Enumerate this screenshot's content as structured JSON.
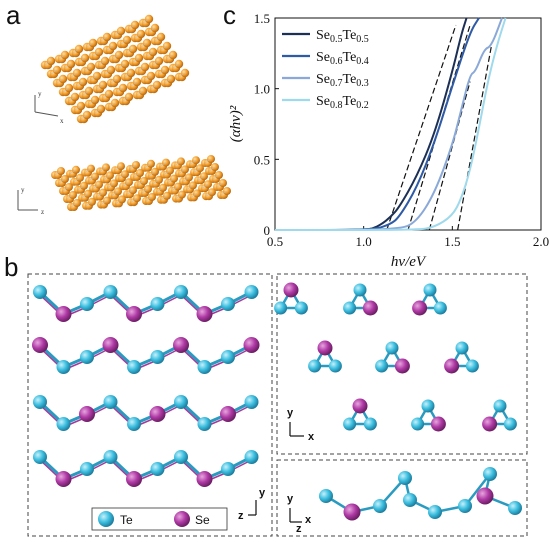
{
  "panels": {
    "a": {
      "letter": "a",
      "top_axes": {
        "y": "y",
        "x": "x"
      },
      "bottom_axes": {
        "y": "y",
        "z": "z"
      }
    },
    "b": {
      "letter": "b",
      "legend": {
        "te": "Te",
        "se": "Se"
      },
      "left_axes": {
        "y": "y",
        "z": "z"
      },
      "right_top_axes": {
        "y": "y",
        "x": "x"
      },
      "right_bottom_axes": {
        "y": "y",
        "x": "x",
        "z": "z"
      }
    },
    "c": {
      "letter": "c"
    }
  },
  "colors": {
    "atom_orange": "#f5a030",
    "te": "#3cbfe0",
    "se": "#b03aa6",
    "series": [
      "#1c2f55",
      "#2e5aa6",
      "#8aa9d8",
      "#9fd9ec"
    ]
  },
  "chart_data": {
    "type": "line",
    "xlabel": "hν/eV",
    "ylabel": "(αhν)²",
    "xlim": [
      0.5,
      2.0
    ],
    "ylim": [
      0,
      1.5
    ],
    "xticks": [
      "0.5",
      "1.0",
      "1.5",
      "2.0"
    ],
    "yticks": [
      "0",
      "0.5",
      "1.0",
      "1.5"
    ],
    "legend_position": "top-left",
    "series": [
      {
        "name": "Se0.5Te0.5",
        "label_base": "Se",
        "sub1": "0.5",
        "mid": "Te",
        "sub2": "0.5",
        "x": [
          0.5,
          1.0,
          1.05,
          1.1,
          1.15,
          1.2,
          1.3,
          1.4,
          1.5,
          1.55,
          1.58
        ],
        "y": [
          0,
          0,
          0.01,
          0.04,
          0.09,
          0.16,
          0.38,
          0.68,
          1.12,
          1.38,
          1.5
        ]
      },
      {
        "name": "Se0.6Te0.4",
        "label_base": "Se",
        "sub1": "0.6",
        "mid": "Te",
        "sub2": "0.4",
        "x": [
          0.5,
          1.05,
          1.15,
          1.2,
          1.3,
          1.4,
          1.5,
          1.6,
          1.65
        ],
        "y": [
          0,
          0,
          0.04,
          0.09,
          0.3,
          0.62,
          1.02,
          1.4,
          1.5
        ]
      },
      {
        "name": "Se0.7Te0.3",
        "label_base": "Se",
        "sub1": "0.7",
        "mid": "Te",
        "sub2": "0.3",
        "x": [
          0.5,
          1.2,
          1.3,
          1.4,
          1.5,
          1.55,
          1.6,
          1.63,
          1.68,
          1.72,
          1.78
        ],
        "y": [
          0,
          0,
          0.06,
          0.26,
          0.6,
          0.85,
          1.1,
          1.12,
          1.28,
          1.3,
          1.5
        ]
      },
      {
        "name": "Se0.8Te0.2",
        "label_base": "Se",
        "sub1": "0.8",
        "mid": "Te",
        "sub2": "0.2",
        "x": [
          0.5,
          1.3,
          1.4,
          1.5,
          1.55,
          1.6,
          1.65,
          1.7,
          1.75,
          1.8
        ],
        "y": [
          0,
          0,
          0.02,
          0.1,
          0.22,
          0.42,
          0.72,
          1.05,
          1.3,
          1.5
        ]
      }
    ],
    "tangents": [
      {
        "x": [
          1.13,
          1.52
        ],
        "y": [
          0,
          1.45
        ]
      },
      {
        "x": [
          1.25,
          1.6
        ],
        "y": [
          0,
          1.45
        ]
      },
      {
        "x": [
          1.37,
          1.6
        ],
        "y": [
          0,
          1.05
        ]
      },
      {
        "x": [
          1.53,
          1.72
        ],
        "y": [
          0,
          1.3
        ]
      }
    ]
  }
}
